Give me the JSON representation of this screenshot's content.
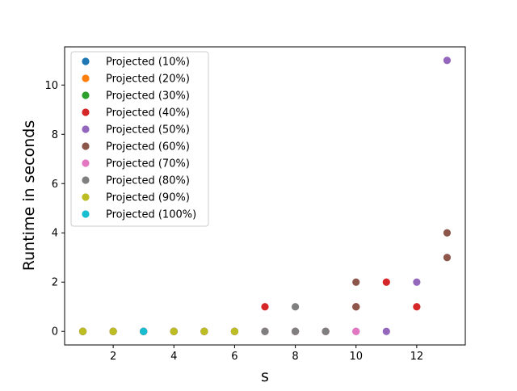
{
  "chart_data": {
    "type": "scatter",
    "title": "",
    "xlabel": "s",
    "ylabel": "Runtime in seconds",
    "xlim": [
      0.4,
      13.6
    ],
    "ylim": [
      -0.55,
      11.55
    ],
    "xticks": [
      2,
      4,
      6,
      8,
      10,
      12
    ],
    "yticks": [
      0,
      2,
      4,
      6,
      8,
      10
    ],
    "grid": false,
    "legend_position": "upper-left",
    "series": [
      {
        "name": "Projected (10%)",
        "color": "#1f77b4",
        "points": [
          [
            1,
            0
          ],
          [
            2,
            0
          ],
          [
            3,
            0
          ],
          [
            4,
            0
          ]
        ]
      },
      {
        "name": "Projected (20%)",
        "color": "#ff7f0e",
        "points": [
          [
            1,
            0
          ],
          [
            2,
            0
          ],
          [
            3,
            0
          ],
          [
            4,
            0
          ],
          [
            5,
            0
          ]
        ]
      },
      {
        "name": "Projected (30%)",
        "color": "#2ca02c",
        "points": [
          [
            1,
            0
          ],
          [
            2,
            0
          ],
          [
            3,
            0
          ],
          [
            4,
            0
          ],
          [
            5,
            0
          ],
          [
            6,
            0
          ]
        ]
      },
      {
        "name": "Projected (40%)",
        "color": "#d62728",
        "points": [
          [
            1,
            0
          ],
          [
            2,
            0
          ],
          [
            3,
            0
          ],
          [
            4,
            0
          ],
          [
            5,
            0
          ],
          [
            6,
            0
          ],
          [
            7,
            1
          ],
          [
            8,
            0
          ],
          [
            9,
            0
          ],
          [
            10,
            1
          ],
          [
            11,
            2
          ],
          [
            12,
            1
          ]
        ]
      },
      {
        "name": "Projected (50%)",
        "color": "#9467bd",
        "points": [
          [
            1,
            0
          ],
          [
            2,
            0
          ],
          [
            3,
            0
          ],
          [
            4,
            0
          ],
          [
            5,
            0
          ],
          [
            6,
            0
          ],
          [
            7,
            0
          ],
          [
            8,
            0
          ],
          [
            9,
            0
          ],
          [
            10,
            0
          ],
          [
            11,
            0
          ],
          [
            12,
            2
          ],
          [
            13,
            11
          ]
        ]
      },
      {
        "name": "Projected (60%)",
        "color": "#8c564b",
        "points": [
          [
            1,
            0
          ],
          [
            2,
            0
          ],
          [
            3,
            0
          ],
          [
            4,
            0
          ],
          [
            5,
            0
          ],
          [
            6,
            0
          ],
          [
            7,
            0
          ],
          [
            8,
            0
          ],
          [
            9,
            0
          ],
          [
            10,
            2
          ],
          [
            10,
            1
          ],
          [
            13,
            4
          ],
          [
            13,
            3
          ]
        ]
      },
      {
        "name": "Projected (70%)",
        "color": "#e377c2",
        "points": [
          [
            1,
            0
          ],
          [
            2,
            0
          ],
          [
            3,
            0
          ],
          [
            4,
            0
          ],
          [
            5,
            0
          ],
          [
            6,
            0
          ],
          [
            7,
            0
          ],
          [
            8,
            0
          ],
          [
            9,
            0
          ],
          [
            10,
            0
          ]
        ]
      },
      {
        "name": "Projected (80%)",
        "color": "#7f7f7f",
        "points": [
          [
            1,
            0
          ],
          [
            2,
            0
          ],
          [
            3,
            0
          ],
          [
            4,
            0
          ],
          [
            5,
            0
          ],
          [
            6,
            0
          ],
          [
            7,
            0
          ],
          [
            8,
            1
          ],
          [
            8,
            0
          ],
          [
            9,
            0
          ]
        ]
      },
      {
        "name": "Projected (90%)",
        "color": "#bcbd22",
        "points": [
          [
            1,
            0
          ],
          [
            2,
            0
          ],
          [
            4,
            0
          ],
          [
            5,
            0
          ],
          [
            6,
            0
          ]
        ]
      },
      {
        "name": "Projected (100%)",
        "color": "#17becf",
        "points": [
          [
            3,
            0
          ]
        ]
      }
    ]
  }
}
